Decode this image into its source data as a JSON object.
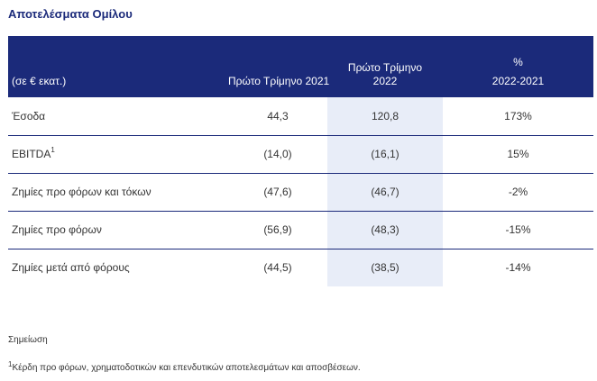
{
  "title": "Αποτελέσματα Ομίλου",
  "table": {
    "headers": {
      "label": "(σε € εκατ.)",
      "q1_2021": "Πρώτο Τρίμηνο 2021",
      "q1_2022_line1": "Πρώτο Τρίμηνο",
      "q1_2022_line2": "2022",
      "pct_line1": "%",
      "pct_line2": "2022-2021"
    },
    "rows": [
      {
        "label": "Έσοδα",
        "sup": "",
        "q1_2021": "44,3",
        "q1_2022": "120,8",
        "pct": "173%"
      },
      {
        "label": "EBITDA",
        "sup": "1",
        "q1_2021": "(14,0)",
        "q1_2022": "(16,1)",
        "pct": "15%"
      },
      {
        "label": "Ζημίες προ φόρων και τόκων",
        "sup": "",
        "q1_2021": "(47,6)",
        "q1_2022": "(46,7)",
        "pct": "-2%"
      },
      {
        "label": "Ζημίες προ φόρων",
        "sup": "",
        "q1_2021": "(56,9)",
        "q1_2022": "(48,3)",
        "pct": "-15%"
      },
      {
        "label": "Ζημίες μετά από φόρους",
        "sup": "",
        "q1_2021": "(44,5)",
        "q1_2022": "(38,5)",
        "pct": "-14%"
      }
    ]
  },
  "notes": {
    "label": "Σημείωση",
    "footnote_marker": "1",
    "footnote_text": "Κέρδη προ φόρων, χρηματοδοτικών και επενδυτικών αποτελεσμάτων και αποσβέσεων."
  },
  "colors": {
    "header_bg": "#1b2a7a",
    "highlight_col": "#e8edf8",
    "title": "#1b2a7a"
  }
}
